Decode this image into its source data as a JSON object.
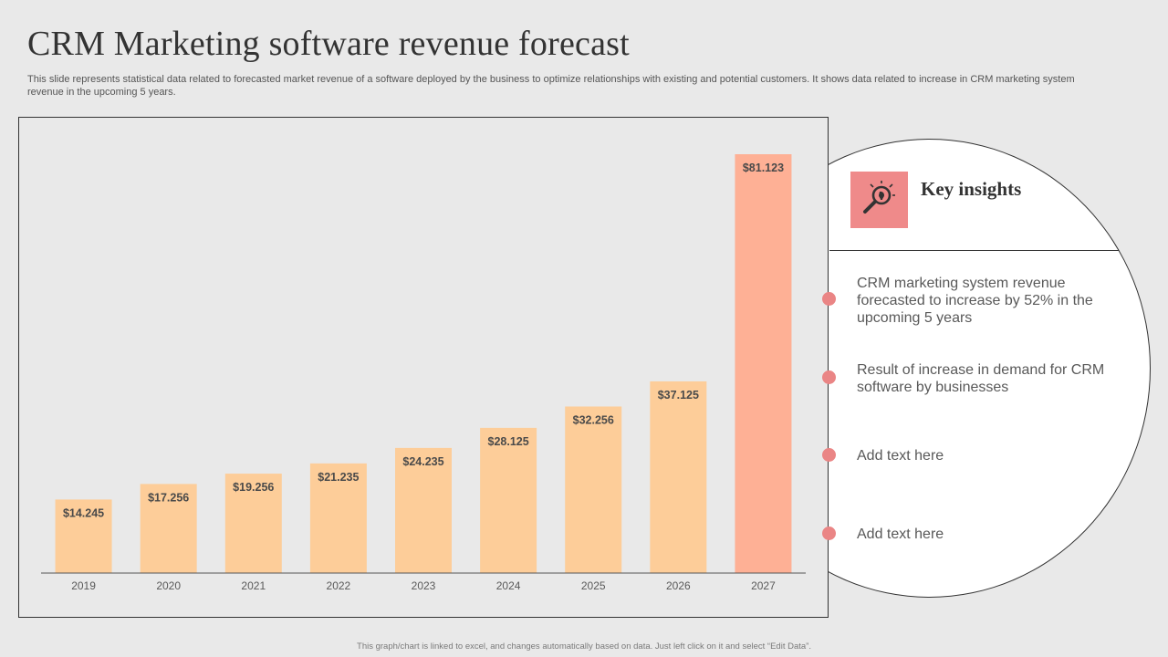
{
  "page": {
    "title": "CRM Marketing software revenue forecast",
    "subtitle": "This slide represents statistical data related to forecasted market revenue of a software deployed by the business to optimize relationships with existing and potential customers. It shows data related to increase in CRM marketing system revenue in the upcoming 5 years.",
    "footnote": "This graph/chart is linked to excel, and changes automatically based on data. Just left click on it and select “Edit Data”."
  },
  "colors": {
    "bar": "#fdcd99",
    "bar_highlight": "#feb095",
    "accent": "#ef8a8a"
  },
  "chart_data": {
    "type": "bar",
    "title": "",
    "xlabel": "",
    "ylabel": "",
    "categories": [
      "2019",
      "2020",
      "2021",
      "2022",
      "2023",
      "2024",
      "2025",
      "2026",
      "2027"
    ],
    "values": [
      14.245,
      17.256,
      19.256,
      21.235,
      24.235,
      28.125,
      32.256,
      37.125,
      81.123
    ],
    "data_labels": [
      "$14.245",
      "$17.256",
      "$19.256",
      "$21.235",
      "$24.235",
      "$28.125",
      "$32.256",
      "$37.125",
      "$81.123"
    ],
    "highlight_index": 8,
    "ylim": [
      0,
      81.123
    ],
    "grid": false,
    "legend": "none"
  },
  "insights": {
    "title": "Key insights",
    "icon": "lightbulb-magnifier-icon",
    "items": [
      "CRM marketing system revenue forecasted to increase by 52% in the upcoming 5 years",
      "Result of increase in demand for CRM software by businesses",
      "Add text here",
      "Add text here"
    ]
  }
}
